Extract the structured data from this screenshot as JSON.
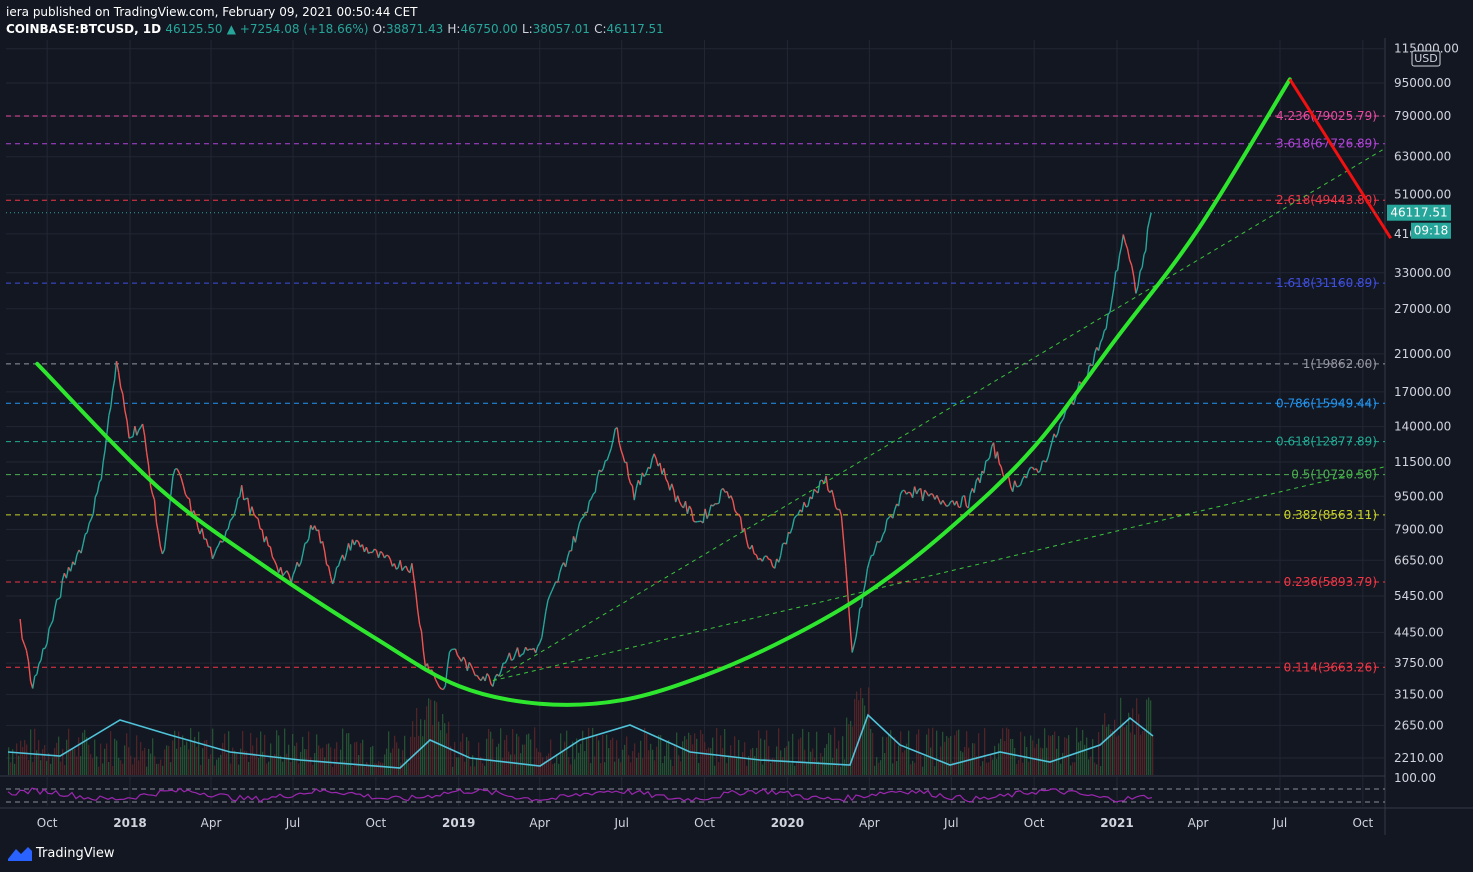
{
  "header": {
    "published": "iera published on TradingView.com, February 09, 2021 00:50:44 CET",
    "symbol": "COINBASE:BTCUSD, 1D",
    "last": "46125.50",
    "change": "▲ +7254.08 (+18.66%)",
    "o_label": "O:",
    "o": "38871.43",
    "h_label": "H:",
    "h": "46750.00",
    "l_label": "L:",
    "l": "38057.01",
    "c_label": "C:",
    "c": "46117.51"
  },
  "brand": {
    "name": "TradingView",
    "icon": "tradingview-logo-icon"
  },
  "chart_data": {
    "type": "line",
    "scale": "log",
    "currency": "USD",
    "x_ticks": [
      "Oct",
      "2018",
      "Apr",
      "Jul",
      "Oct",
      "2019",
      "Apr",
      "Jul",
      "Oct",
      "2020",
      "Apr",
      "Jul",
      "Oct",
      "2021",
      "Apr",
      "Jul",
      "Oct"
    ],
    "y_ticks": [
      "115000.00",
      "95000.00",
      "79000.00",
      "63000.00",
      "51000.00",
      "41000.00",
      "33000.00",
      "27000.00",
      "21000.00",
      "17000.00",
      "14000.00",
      "11500.00",
      "9500.00",
      "7900.00",
      "6650.00",
      "5450.00",
      "4450.00",
      "3750.00",
      "3150.00",
      "2650.00",
      "2210.00"
    ],
    "indicator_tick": "100.00",
    "last_price": "46117.51",
    "countdown": "09:18",
    "fib_levels": [
      {
        "label": "4.236(79025.79)",
        "value": 79025.79,
        "color": "#e84aa0"
      },
      {
        "label": "3.618(67726.89)",
        "value": 67726.89,
        "color": "#b044d8"
      },
      {
        "label": "2.618(49443.80)",
        "value": 49443.8,
        "color": "#f23645"
      },
      {
        "label": "1.618(31160.89)",
        "value": 31160.89,
        "color": "#3f4fe0"
      },
      {
        "label": "1(19862.00)",
        "value": 19862.0,
        "color": "#9598a1"
      },
      {
        "label": "0.786(15949.44)",
        "value": 15949.44,
        "color": "#2196f3"
      },
      {
        "label": "0.618(12877.89)",
        "value": 12877.89,
        "color": "#22ab94"
      },
      {
        "label": "0.5(10720.50)",
        "value": 10720.5,
        "color": "#4caf50"
      },
      {
        "label": "0.382(8563.11)",
        "value": 8563.11,
        "color": "#c8d12a"
      },
      {
        "label": "0.236(5893.79)",
        "value": 5893.79,
        "color": "#f23645"
      },
      {
        "label": "0.114(3663.26)",
        "value": 3663.26,
        "color": "#f23645"
      }
    ],
    "price_series": [
      [
        "2017-09-01",
        4700
      ],
      [
        "2017-09-15",
        3300
      ],
      [
        "2017-10-01",
        4300
      ],
      [
        "2017-10-20",
        6000
      ],
      [
        "2017-11-10",
        7300
      ],
      [
        "2017-11-28",
        10000
      ],
      [
        "2017-12-17",
        19800
      ],
      [
        "2017-12-31",
        13500
      ],
      [
        "2018-01-15",
        14000
      ],
      [
        "2018-02-06",
        6700
      ],
      [
        "2018-02-20",
        11200
      ],
      [
        "2018-03-15",
        8300
      ],
      [
        "2018-04-05",
        6700
      ],
      [
        "2018-05-05",
        9800
      ],
      [
        "2018-06-15",
        6400
      ],
      [
        "2018-06-29",
        5900
      ],
      [
        "2018-07-25",
        8300
      ],
      [
        "2018-08-14",
        6000
      ],
      [
        "2018-09-05",
        7400
      ],
      [
        "2018-10-15",
        6600
      ],
      [
        "2018-11-10",
        6400
      ],
      [
        "2018-11-25",
        3800
      ],
      [
        "2018-12-15",
        3200
      ],
      [
        "2018-12-24",
        4100
      ],
      [
        "2019-01-15",
        3600
      ],
      [
        "2019-02-08",
        3400
      ],
      [
        "2019-02-24",
        3900
      ],
      [
        "2019-04-01",
        4100
      ],
      [
        "2019-04-10",
        5200
      ],
      [
        "2019-05-15",
        8000
      ],
      [
        "2019-06-26",
        13800
      ],
      [
        "2019-07-15",
        9600
      ],
      [
        "2019-08-06",
        12000
      ],
      [
        "2019-08-30",
        9500
      ],
      [
        "2019-09-25",
        8200
      ],
      [
        "2019-10-26",
        10000
      ],
      [
        "2019-11-25",
        6800
      ],
      [
        "2019-12-18",
        6500
      ],
      [
        "2020-01-15",
        8800
      ],
      [
        "2020-02-13",
        10400
      ],
      [
        "2020-03-01",
        8500
      ],
      [
        "2020-03-13",
        3900
      ],
      [
        "2020-04-01",
        6600
      ],
      [
        "2020-05-10",
        9900
      ],
      [
        "2020-06-15",
        9300
      ],
      [
        "2020-07-20",
        9200
      ],
      [
        "2020-08-17",
        12400
      ],
      [
        "2020-09-05",
        10000
      ],
      [
        "2020-10-10",
        11300
      ],
      [
        "2020-11-05",
        15000
      ],
      [
        "2020-12-01",
        19300
      ],
      [
        "2020-12-20",
        24000
      ],
      [
        "2021-01-08",
        41000
      ],
      [
        "2021-01-22",
        30000
      ],
      [
        "2021-01-29",
        34000
      ],
      [
        "2021-02-08",
        46117
      ]
    ],
    "green_curve": [
      [
        "2017-09-20",
        19862
      ],
      [
        "2018-02-01",
        10000
      ],
      [
        "2018-06-01",
        6400
      ],
      [
        "2018-10-01",
        4300
      ],
      [
        "2019-01-01",
        3300
      ],
      [
        "2019-04-01",
        2990
      ],
      [
        "2019-07-01",
        3050
      ],
      [
        "2019-10-01",
        3500
      ],
      [
        "2020-01-01",
        4300
      ],
      [
        "2020-04-01",
        5600
      ],
      [
        "2020-07-01",
        8000
      ],
      [
        "2020-10-01",
        12500
      ],
      [
        "2021-01-01",
        23000
      ],
      [
        "2021-04-01",
        42000
      ],
      [
        "2021-07-12",
        97000
      ]
    ],
    "red_line": [
      [
        "2021-07-12",
        97000
      ],
      [
        "2021-11-01",
        40000
      ]
    ]
  }
}
